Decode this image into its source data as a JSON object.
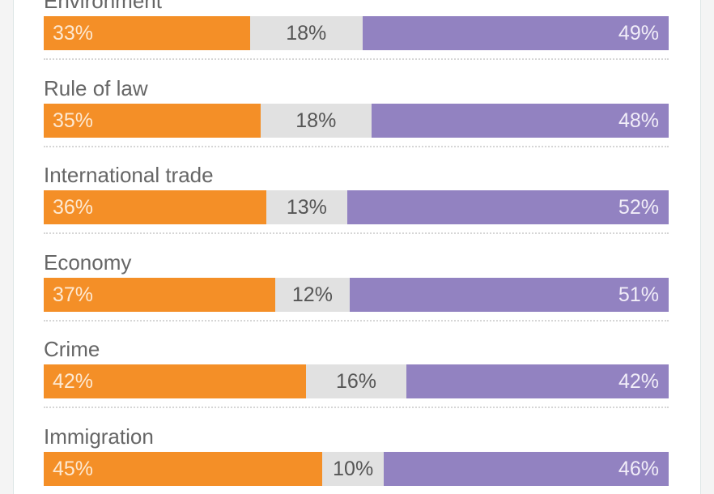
{
  "colors": {
    "series_a": "#f48f27",
    "series_b": "#e1e1e1",
    "series_c": "#9282c1"
  },
  "chart_data": {
    "type": "bar",
    "orientation": "horizontal",
    "stacked": true,
    "normalized": "percent",
    "categories": [
      "Environment",
      "Rule of law",
      "International trade",
      "Economy",
      "Crime",
      "Immigration"
    ],
    "series": [
      {
        "values": [
          33,
          35,
          36,
          37,
          42,
          45
        ],
        "labels": [
          "33%",
          "35%",
          "36%",
          "37%",
          "42%",
          "45%"
        ]
      },
      {
        "values": [
          18,
          18,
          13,
          12,
          16,
          10
        ],
        "labels": [
          "18%",
          "18%",
          "13%",
          "12%",
          "16%",
          "10%"
        ]
      },
      {
        "values": [
          49,
          48,
          52,
          51,
          42,
          46
        ],
        "labels": [
          "49%",
          "48%",
          "52%",
          "51%",
          "42%",
          "46%"
        ]
      }
    ],
    "legend": "none",
    "grid": false
  }
}
